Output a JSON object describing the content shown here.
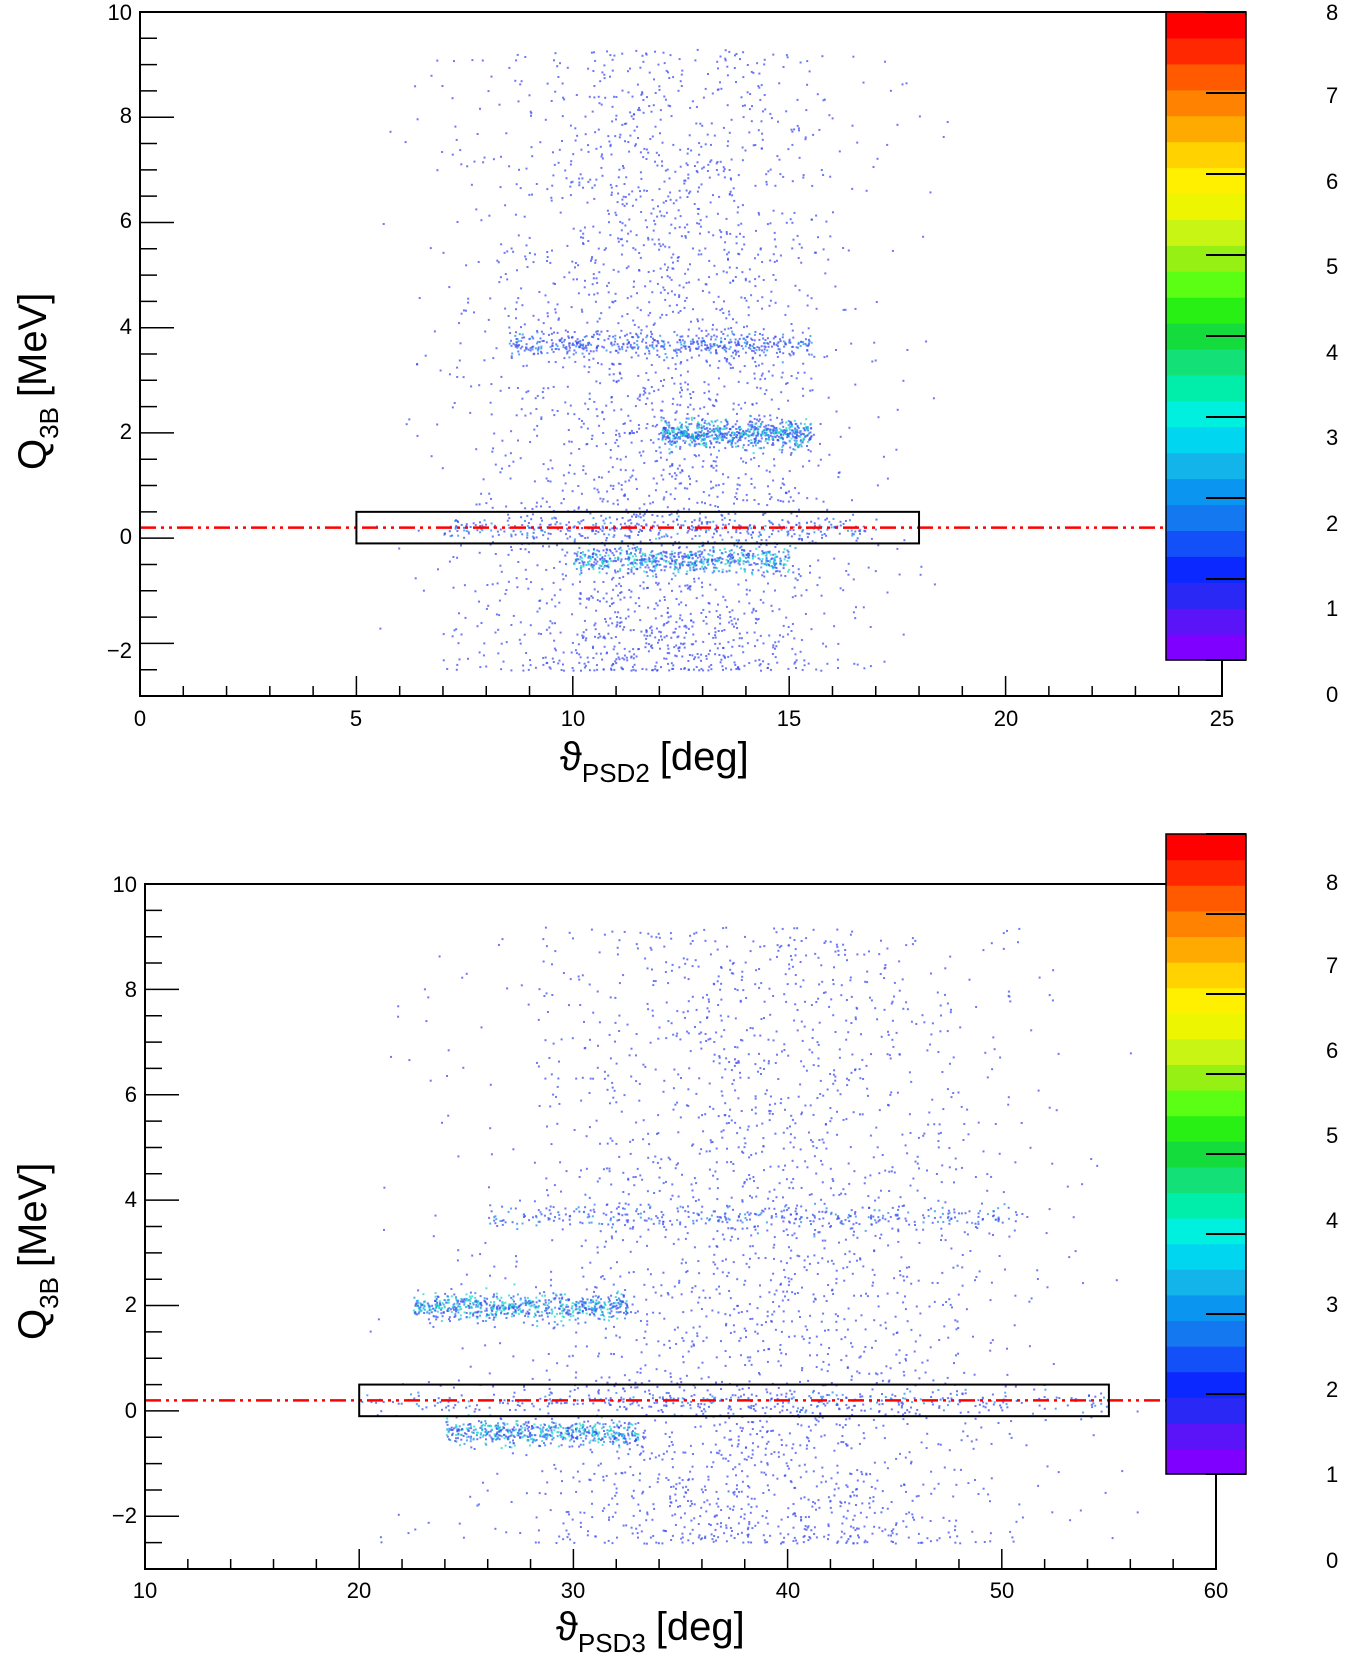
{
  "colors": {
    "palette": [
      "#7f00ff",
      "#5a14f7",
      "#2a28f5",
      "#0a28ff",
      "#1450f7",
      "#1478f0",
      "#0a96f0",
      "#12b4ea",
      "#00d6f0",
      "#00f0e0",
      "#00eeaa",
      "#14e078",
      "#14dc3c",
      "#28f014",
      "#5aff14",
      "#96f014",
      "#c8f514",
      "#eef500",
      "#fff000",
      "#ffd200",
      "#ffaa00",
      "#ff8200",
      "#ff5a00",
      "#ff2800",
      "#ff0000"
    ],
    "point_color": "#3c4cf0",
    "fit_line": "#ff0000",
    "box": "#000000"
  },
  "chart_data": [
    {
      "type": "scatter",
      "name": "top",
      "xlabel_main": "ϑ",
      "xlabel_sub": "PSD2",
      "xlabel_unit": "[deg]",
      "ylabel_main": "Q",
      "ylabel_sub": "3B",
      "ylabel_unit": "[MeV]",
      "xlim": [
        0,
        25
      ],
      "ylim": [
        -3,
        10
      ],
      "xticks": [
        "0",
        "5",
        "10",
        "15",
        "20",
        "25"
      ],
      "yticks": [
        "−2",
        "0",
        "2",
        "4",
        "6",
        "8",
        "10"
      ],
      "zlim": [
        0,
        8
      ],
      "zticks": [
        "0",
        "1",
        "2",
        "3",
        "4",
        "5",
        "6",
        "7",
        "8"
      ],
      "reference_line_y": 0.2,
      "selection_box": {
        "x": [
          5,
          18
        ],
        "y": [
          -0.1,
          0.5
        ]
      },
      "density": {
        "x_range": [
          5.3,
          18.7
        ],
        "y_range": [
          -2.5,
          9.3
        ],
        "bands": [
          {
            "y": 3.7,
            "x": [
              8.5,
              15.5
            ],
            "intensity": 2.0
          },
          {
            "y": 2.0,
            "x": [
              12,
              15.5
            ],
            "intensity": 3.0
          },
          {
            "y": 0.2,
            "x": [
              7,
              17
            ],
            "intensity": 1.5
          },
          {
            "y": -0.4,
            "x": [
              10,
              15
            ],
            "intensity": 2.5
          }
        ]
      }
    },
    {
      "type": "scatter",
      "name": "bottom",
      "xlabel_main": "ϑ",
      "xlabel_sub": "PSD3",
      "xlabel_unit": "[deg]",
      "ylabel_main": "Q",
      "ylabel_sub": "3B",
      "ylabel_unit": "[MeV]",
      "xlim": [
        10,
        60
      ],
      "ylim": [
        -3,
        10
      ],
      "xticks": [
        "10",
        "20",
        "30",
        "40",
        "50",
        "60"
      ],
      "yticks": [
        "−2",
        "0",
        "2",
        "4",
        "6",
        "8",
        "10"
      ],
      "zlim": [
        0,
        8
      ],
      "zticks": [
        "0",
        "1",
        "2",
        "3",
        "4",
        "5",
        "6",
        "7",
        "8"
      ],
      "reference_line_y": 0.2,
      "selection_box": {
        "x": [
          20,
          55
        ],
        "y": [
          -0.1,
          0.5
        ]
      },
      "density": {
        "x_range": [
          20,
          57
        ],
        "y_range": [
          -2.5,
          9.2
        ],
        "bands": [
          {
            "y": 3.7,
            "x": [
              26,
              51
            ],
            "intensity": 1.5
          },
          {
            "y": 2.0,
            "x": [
              22.5,
              32.5
            ],
            "intensity": 3.0
          },
          {
            "y": 0.2,
            "x": [
              20,
              55
            ],
            "intensity": 1.5
          },
          {
            "y": -0.4,
            "x": [
              24,
              33
            ],
            "intensity": 2.5
          }
        ]
      }
    }
  ]
}
